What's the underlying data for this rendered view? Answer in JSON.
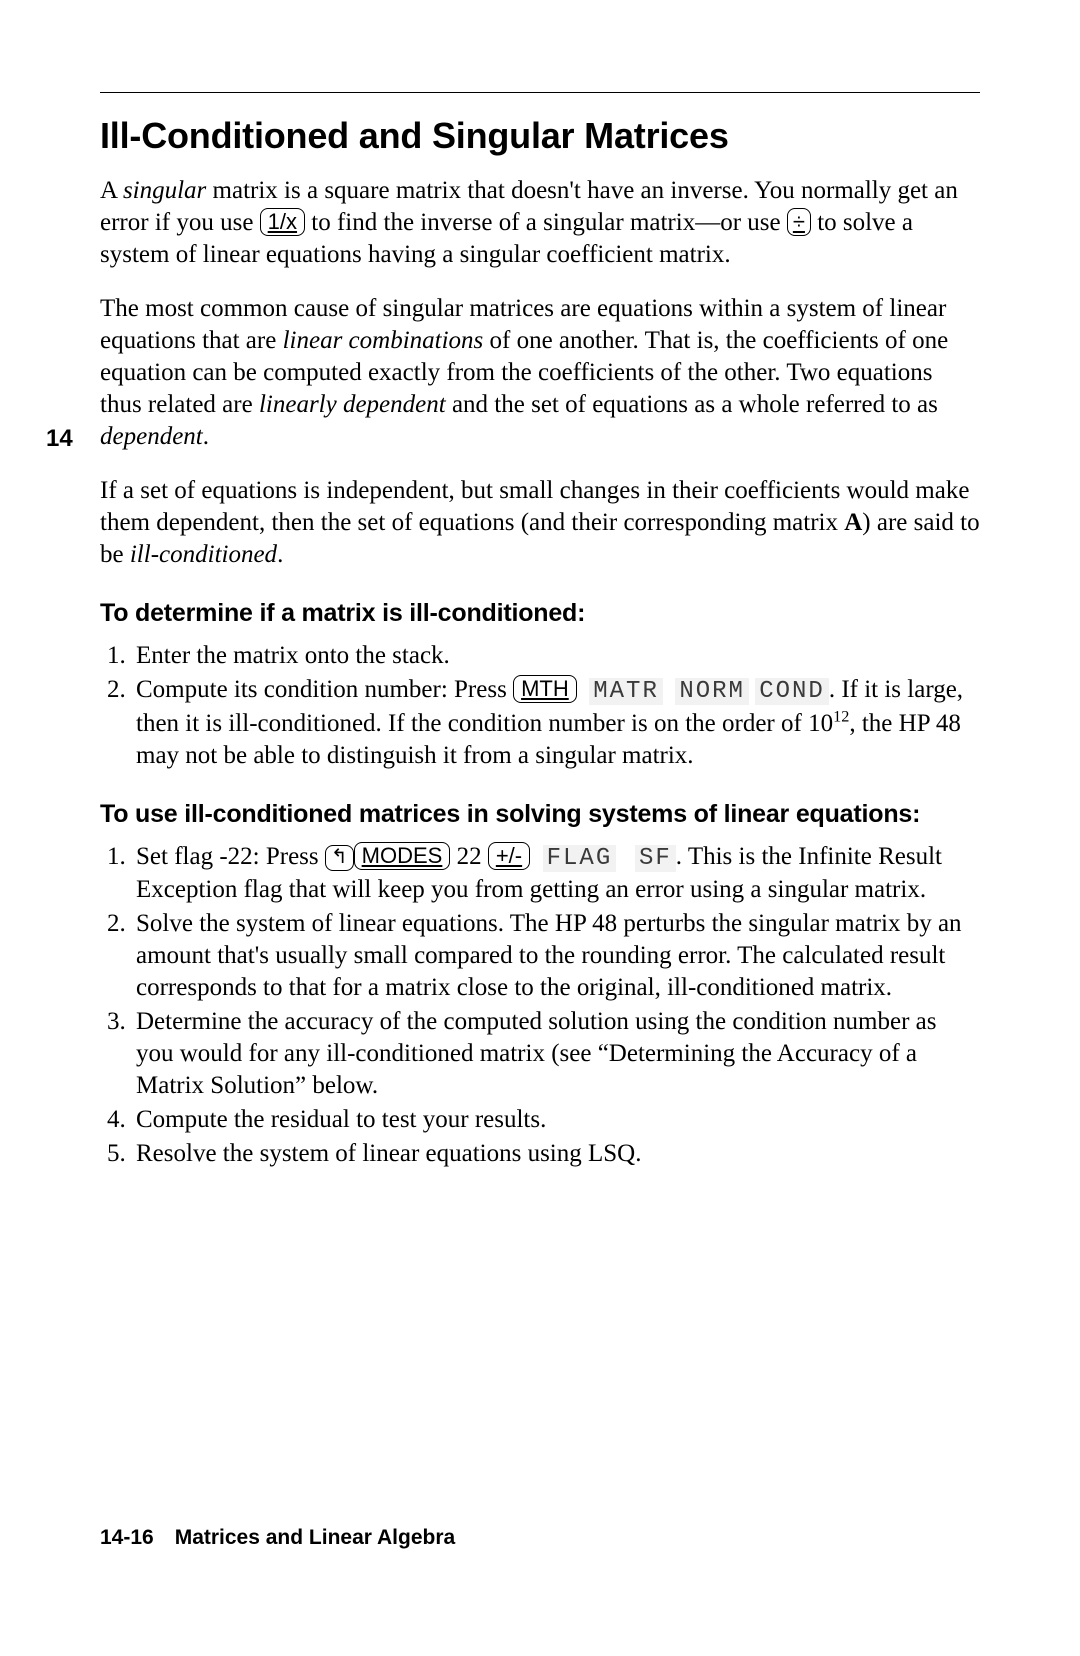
{
  "chapter_marker": "14",
  "title": "Ill-Conditioned and Singular Matrices",
  "p1_a": "A ",
  "p1_it1": "singular",
  "p1_b": " matrix is a square matrix that doesn't have an inverse. You normally get an error if you use ",
  "p1_key1": "1/x",
  "p1_c": " to find the inverse of a singular matrix—or use ",
  "p1_key2": "÷",
  "p1_d": " to solve a system of linear equations having a singular coefficient matrix.",
  "p2_a": "The most common cause of singular matrices are equations within a system of linear equations that are ",
  "p2_it1": "linear combinations",
  "p2_b": " of one another. That is, the coefficients of one equation can be computed exactly from the coefficients of the other. Two equations thus related are ",
  "p2_it2": "linearly dependent",
  "p2_c": " and the set of equations as a whole referred to as ",
  "p2_it3": "dependent",
  "p2_d": ".",
  "p3_a": "If a set of equations is independent, but small changes in their coefficients would make them dependent, then the set of equations (and their corresponding matrix ",
  "p3_bold": "A",
  "p3_b": ") are said to be ",
  "p3_it1": "ill-conditioned",
  "p3_c": ".",
  "sub1": "To determine if a matrix is ill-conditioned:",
  "list1": {
    "i1": "Enter the matrix onto the stack.",
    "i2_a": "Compute its condition number: Press ",
    "i2_key": "MTH",
    "i2_sk1": "MATR",
    "i2_sk2": "NORM",
    "i2_sk3": "COND",
    "i2_b": ". If it is large, then it is ill-conditioned. If the condition number is on the order of 10",
    "i2_exp": "12",
    "i2_c": ", the HP 48 may not be able to distinguish it from a singular matrix."
  },
  "sub2": "To use ill-conditioned matrices in solving systems of linear equations:",
  "list2": {
    "i1_a": "Set flag -22: Press ",
    "i1_shift": "↰",
    "i1_key1": "MODES",
    "i1_b": " 22 ",
    "i1_key2": "+/-",
    "i1_sk1": "FLAG",
    "i1_sk2": "SF",
    "i1_c": ". This is the Infinite Result Exception flag that will keep you from getting an error using a singular matrix.",
    "i2": "Solve the system of linear equations. The HP 48 perturbs the singular matrix by an amount that's usually small compared to the rounding error. The calculated result corresponds to that for a matrix close to the original, ill-conditioned matrix.",
    "i3": "Determine the accuracy of the computed solution using the condition number as you would for any ill-conditioned matrix (see “Determining the Accuracy of a Matrix Solution” below.",
    "i4": "Compute the residual to test your results.",
    "i5": "Resolve the system of linear equations using LSQ."
  },
  "footer": "14-16 Matrices and Linear Algebra"
}
